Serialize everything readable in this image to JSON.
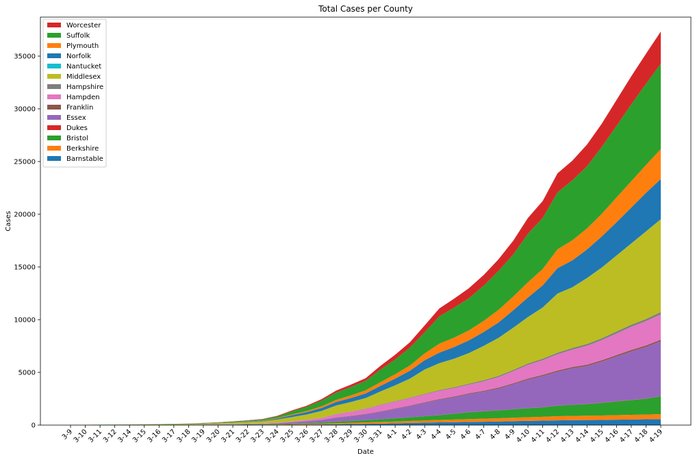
{
  "chart_data": {
    "type": "area",
    "stacked": true,
    "title": "Total Cases per County",
    "xlabel": "Date",
    "ylabel": "Cases",
    "ylim": [
      0,
      38700
    ],
    "yticks": [
      0,
      5000,
      10000,
      15000,
      20000,
      25000,
      30000,
      35000
    ],
    "grid": false,
    "legend_position": "top-left",
    "categories": [
      "3-9",
      "3-10",
      "3-11",
      "3-12",
      "3-14",
      "3-15",
      "3-16",
      "3-17",
      "3-18",
      "3-19",
      "3-20",
      "3-21",
      "3-22",
      "3-23",
      "3-24",
      "3-25",
      "3-26",
      "3-27",
      "3-28",
      "3-29",
      "3-30",
      "3-31",
      "4-1",
      "4-2",
      "4-3",
      "4-4",
      "4-5",
      "4-6",
      "4-7",
      "4-8",
      "4-9",
      "4-10",
      "4-11",
      "4-12",
      "4-13",
      "4-14",
      "4-15",
      "4-16",
      "4-17",
      "4-18",
      "4-19"
    ],
    "series": [
      {
        "name": "Barnstable",
        "color": "#1f77b4",
        "values": [
          1,
          1,
          1,
          2,
          3,
          4,
          5,
          6,
          7,
          8,
          10,
          12,
          14,
          16,
          20,
          35,
          45,
          55,
          80,
          100,
          120,
          140,
          170,
          200,
          230,
          260,
          280,
          300,
          320,
          340,
          370,
          400,
          420,
          450,
          470,
          480,
          490,
          510,
          530,
          550,
          570
        ]
      },
      {
        "name": "Berkshire",
        "color": "#ff7f0e",
        "values": [
          2,
          4,
          5,
          6,
          7,
          8,
          9,
          10,
          12,
          14,
          16,
          19,
          22,
          25,
          30,
          40,
          55,
          70,
          90,
          110,
          130,
          150,
          170,
          190,
          210,
          230,
          250,
          270,
          290,
          310,
          330,
          350,
          370,
          390,
          400,
          410,
          420,
          430,
          440,
          450,
          470
        ]
      },
      {
        "name": "Bristol",
        "color": "#2ca02c",
        "values": [
          0,
          0,
          0,
          0,
          0,
          1,
          2,
          3,
          5,
          8,
          12,
          18,
          25,
          35,
          50,
          60,
          80,
          100,
          150,
          180,
          220,
          260,
          300,
          350,
          400,
          450,
          550,
          650,
          700,
          750,
          800,
          850,
          900,
          1000,
          1050,
          1100,
          1200,
          1300,
          1400,
          1500,
          1700
        ]
      },
      {
        "name": "Dukes",
        "color": "#d62728",
        "values": [
          0,
          0,
          0,
          0,
          0,
          0,
          0,
          0,
          0,
          1,
          1,
          1,
          1,
          1,
          2,
          3,
          3,
          4,
          5,
          5,
          6,
          6,
          7,
          8,
          8,
          9,
          9,
          10,
          10,
          10,
          11,
          11,
          11,
          12,
          12,
          12,
          12,
          13,
          13,
          13,
          13
        ]
      },
      {
        "name": "Essex",
        "color": "#9467bd",
        "values": [
          1,
          2,
          2,
          3,
          4,
          5,
          6,
          8,
          10,
          14,
          20,
          28,
          38,
          50,
          70,
          130,
          180,
          250,
          380,
          450,
          540,
          700,
          880,
          1050,
          1250,
          1450,
          1550,
          1700,
          1850,
          2050,
          2350,
          2700,
          2950,
          3200,
          3450,
          3600,
          3900,
          4250,
          4600,
          4900,
          5200
        ]
      },
      {
        "name": "Franklin",
        "color": "#8c564b",
        "values": [
          0,
          0,
          0,
          0,
          0,
          0,
          0,
          1,
          1,
          1,
          2,
          3,
          4,
          5,
          7,
          10,
          14,
          18,
          25,
          30,
          35,
          40,
          48,
          55,
          62,
          70,
          75,
          80,
          88,
          95,
          100,
          105,
          110,
          115,
          120,
          125,
          130,
          135,
          140,
          145,
          150
        ]
      },
      {
        "name": "Hampden",
        "color": "#e377c2",
        "values": [
          0,
          0,
          0,
          0,
          1,
          1,
          2,
          3,
          4,
          6,
          9,
          13,
          18,
          25,
          40,
          70,
          110,
          170,
          300,
          380,
          480,
          600,
          650,
          700,
          750,
          780,
          800,
          830,
          900,
          1000,
          1150,
          1300,
          1400,
          1550,
          1650,
          1800,
          1900,
          2050,
          2200,
          2300,
          2400
        ]
      },
      {
        "name": "Hampshire",
        "color": "#7f7f7f",
        "values": [
          0,
          0,
          0,
          0,
          0,
          0,
          1,
          1,
          1,
          2,
          3,
          4,
          5,
          6,
          8,
          10,
          14,
          18,
          25,
          30,
          35,
          40,
          45,
          50,
          60,
          70,
          80,
          90,
          100,
          110,
          120,
          130,
          140,
          150,
          160,
          170,
          180,
          190,
          200,
          210,
          220
        ]
      },
      {
        "name": "Middlesex",
        "color": "#bcbd22",
        "values": [
          12,
          15,
          18,
          20,
          25,
          35,
          40,
          50,
          60,
          80,
          100,
          130,
          160,
          200,
          300,
          400,
          500,
          650,
          800,
          900,
          1000,
          1250,
          1500,
          1800,
          2300,
          2550,
          2700,
          2900,
          3250,
          3600,
          4000,
          4400,
          4850,
          5600,
          5750,
          6250,
          6700,
          7200,
          7700,
          8300,
          8800
        ]
      },
      {
        "name": "Nantucket",
        "color": "#17becf",
        "values": [
          0,
          0,
          0,
          0,
          0,
          0,
          0,
          0,
          0,
          0,
          1,
          1,
          1,
          1,
          1,
          2,
          2,
          2,
          3,
          3,
          3,
          3,
          4,
          4,
          4,
          5,
          5,
          5,
          6,
          6,
          6,
          7,
          7,
          8,
          8,
          8,
          8,
          9,
          9,
          9,
          9
        ]
      },
      {
        "name": "Norfolk",
        "color": "#1f77b4",
        "values": [
          3,
          5,
          6,
          8,
          10,
          12,
          14,
          16,
          20,
          25,
          30,
          40,
          50,
          60,
          100,
          170,
          220,
          280,
          330,
          380,
          430,
          530,
          630,
          750,
          880,
          1000,
          1100,
          1200,
          1320,
          1450,
          1650,
          1850,
          2100,
          2400,
          2550,
          2700,
          2950,
          3150,
          3400,
          3650,
          3800
        ]
      },
      {
        "name": "Plymouth",
        "color": "#ff7f0e",
        "values": [
          0,
          1,
          1,
          2,
          3,
          4,
          5,
          6,
          8,
          10,
          14,
          18,
          24,
          30,
          45,
          80,
          110,
          150,
          200,
          250,
          300,
          350,
          420,
          500,
          650,
          850,
          900,
          950,
          1050,
          1200,
          1300,
          1450,
          1550,
          1800,
          1900,
          2000,
          2150,
          2350,
          2500,
          2650,
          2850
        ]
      },
      {
        "name": "Suffolk",
        "color": "#2ca02c",
        "values": [
          2,
          4,
          5,
          6,
          8,
          10,
          12,
          15,
          18,
          25,
          35,
          50,
          70,
          90,
          150,
          300,
          400,
          550,
          700,
          800,
          900,
          1200,
          1400,
          1700,
          2000,
          2600,
          2850,
          3050,
          3350,
          3700,
          4000,
          4600,
          4850,
          5400,
          5700,
          5900,
          6350,
          6800,
          7300,
          7700,
          8100
        ]
      },
      {
        "name": "Worcester",
        "color": "#d62728",
        "values": [
          0,
          1,
          1,
          2,
          3,
          4,
          5,
          6,
          8,
          10,
          14,
          18,
          24,
          30,
          50,
          80,
          100,
          130,
          180,
          220,
          250,
          350,
          450,
          500,
          650,
          750,
          850,
          950,
          1000,
          1100,
          1300,
          1500,
          1600,
          1800,
          1850,
          2050,
          2200,
          2450,
          2650,
          2850,
          3050
        ]
      }
    ]
  }
}
